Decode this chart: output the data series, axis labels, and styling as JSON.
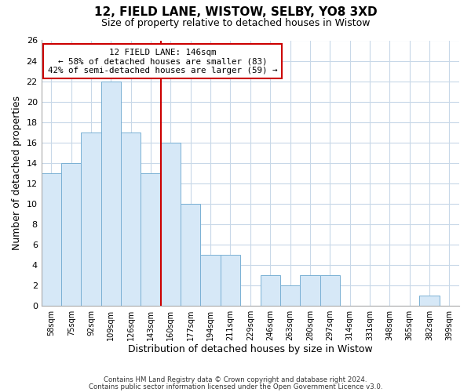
{
  "title": "12, FIELD LANE, WISTOW, SELBY, YO8 3XD",
  "subtitle": "Size of property relative to detached houses in Wistow",
  "xlabel": "Distribution of detached houses by size in Wistow",
  "ylabel": "Number of detached properties",
  "bar_labels": [
    "58sqm",
    "75sqm",
    "92sqm",
    "109sqm",
    "126sqm",
    "143sqm",
    "160sqm",
    "177sqm",
    "194sqm",
    "211sqm",
    "229sqm",
    "246sqm",
    "263sqm",
    "280sqm",
    "297sqm",
    "314sqm",
    "331sqm",
    "348sqm",
    "365sqm",
    "382sqm",
    "399sqm"
  ],
  "bar_values": [
    13,
    14,
    17,
    22,
    17,
    13,
    16,
    10,
    5,
    5,
    0,
    3,
    2,
    3,
    3,
    0,
    0,
    0,
    0,
    1,
    0
  ],
  "bar_color": "#d6e8f7",
  "bar_edge_color": "#7ab0d4",
  "ylim": [
    0,
    26
  ],
  "yticks": [
    0,
    2,
    4,
    6,
    8,
    10,
    12,
    14,
    16,
    18,
    20,
    22,
    24,
    26
  ],
  "vline_x_index": 5.5,
  "annotation_title": "12 FIELD LANE: 146sqm",
  "annotation_line1": "← 58% of detached houses are smaller (83)",
  "annotation_line2": "42% of semi-detached houses are larger (59) →",
  "annotation_box_color": "#ffffff",
  "annotation_box_edge": "#cc0000",
  "vline_color": "#cc0000",
  "footer_line1": "Contains HM Land Registry data © Crown copyright and database right 2024.",
  "footer_line2": "Contains public sector information licensed under the Open Government Licence v3.0.",
  "background_color": "#ffffff",
  "grid_color": "#c8d8e8"
}
